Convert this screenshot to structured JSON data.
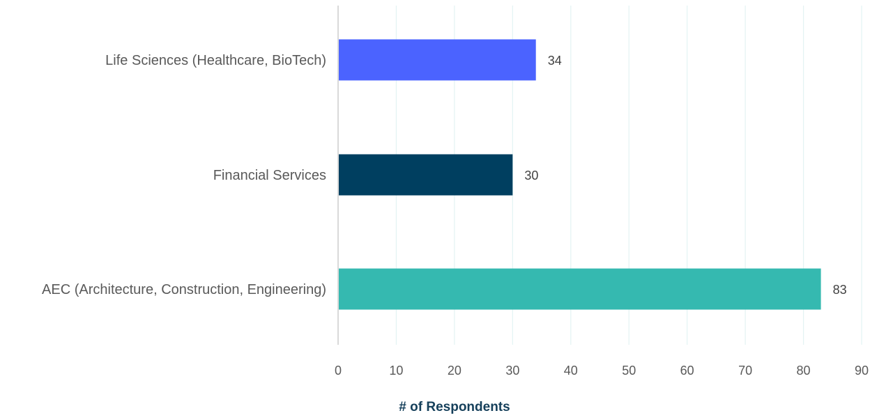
{
  "chart_data": {
    "type": "bar",
    "orientation": "horizontal",
    "categories": [
      "Life Sciences (Healthcare, BioTech)",
      "Financial Services",
      "AEC (Architecture, Construction, Engineering)"
    ],
    "values": [
      34,
      30,
      83
    ],
    "bar_colors": [
      "#4b63ff",
      "#003f60",
      "#35b9b0"
    ],
    "xlabel": "# of Respondents",
    "ylabel": "",
    "xlim": [
      0,
      90
    ],
    "xticks": [
      0,
      10,
      20,
      30,
      40,
      50,
      60,
      70,
      80,
      90
    ],
    "grid": true,
    "grid_color": "#e3f3f3",
    "data_labels": true,
    "legend": "none"
  }
}
